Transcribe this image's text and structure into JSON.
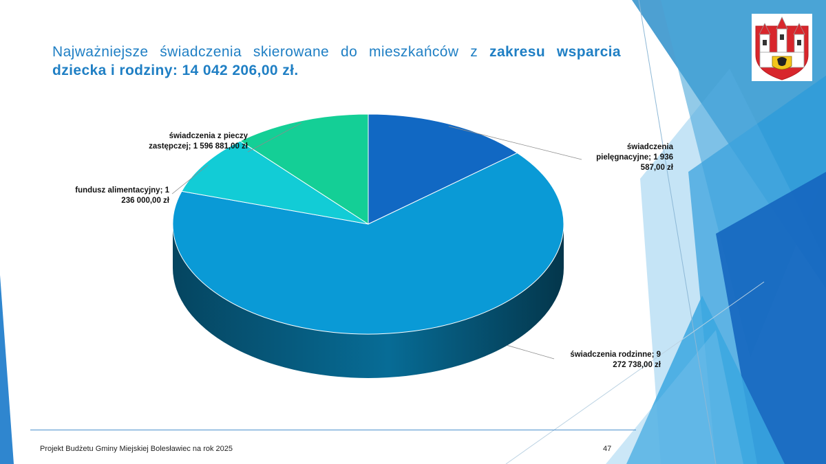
{
  "slide": {
    "title_normal": "Najważniejsze świadczenia skierowane do mieszkańców z ",
    "title_bold": "zakresu wsparcia dziecka i rodziny: 14 042 206,00 zł.",
    "footer": "Projekt Budżetu Gminy Miejskiej Bolesławiec na rok 2025",
    "page_number": "47"
  },
  "colors": {
    "title": "#1f7fc4",
    "rodzinne": "#0a9ad6",
    "pielegnacyjne": "#1168c3",
    "alimentacyjny": "#12ccd6",
    "piecza": "#14cf96"
  },
  "chart_data": {
    "type": "pie",
    "style": "3d",
    "title": "",
    "labels": [
      "świadczenia pielęgnacyjne",
      "świadczenia rodzinne",
      "fundusz alimentacyjny",
      "świadczenia z pieczy zastępczej"
    ],
    "values": [
      1936587.0,
      9272738.0,
      1236000.0,
      1596881.0
    ],
    "data_labels": [
      "świadczenia pielęgnacyjne; 1 936 587,00 zł",
      "świadczenia rodzinne; 9 272 738,00 zł",
      "fundusz alimentacyjny; 1 236 000,00 zł",
      "świadczenia z pieczy zastępczej; 1 596 881,00 zł"
    ],
    "legend": "none"
  }
}
